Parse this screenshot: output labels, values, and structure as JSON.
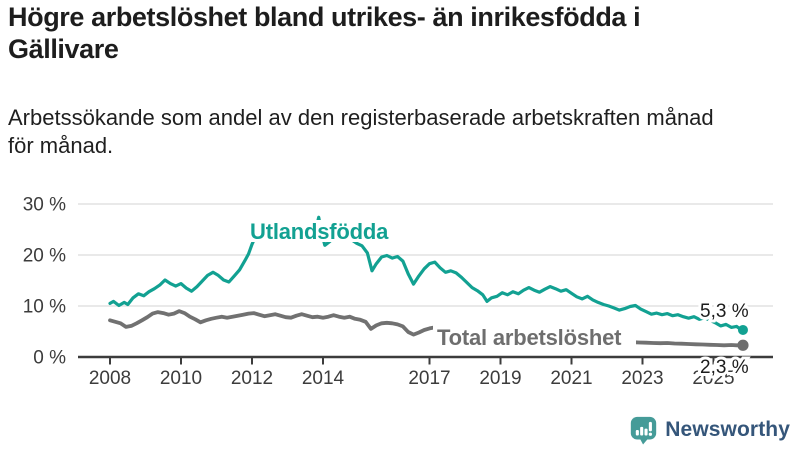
{
  "header": {
    "title": "Högre arbetslöshet bland utrikes- än inrikesfödda i Gällivare",
    "subtitle": "Arbetssökande som andel av den registerbaserade arbetskraften månad för månad."
  },
  "chart_data": {
    "type": "line",
    "xlabel": "",
    "ylabel": "",
    "x_range": [
      2008,
      2025.83
    ],
    "ylim": [
      0,
      30
    ],
    "grid": "horizontal",
    "y_ticks": [
      0,
      10,
      20,
      30
    ],
    "y_tick_suffix": " %",
    "x_tick_labels": [
      "2008",
      "2010",
      "2012",
      "2014",
      "2017",
      "2019",
      "2021",
      "2023",
      "2025"
    ],
    "x_tick_values": [
      2008,
      2010,
      2012,
      2014,
      2017,
      2019,
      2021,
      2023,
      2025
    ],
    "colors": {
      "utlandsfodda": "#12a192",
      "total": "#717171",
      "axis": "#3c3c3c",
      "gridline": "#dcdcdc",
      "end_label": "#1c1c1c"
    },
    "series": [
      {
        "name": "Utlandsfödda",
        "color": "#12a192",
        "end_label": "5,3 %",
        "end_value": 5.3,
        "points": [
          [
            2008.0,
            10.5
          ],
          [
            2008.1,
            10.9
          ],
          [
            2008.25,
            10.1
          ],
          [
            2008.4,
            10.7
          ],
          [
            2008.5,
            10.3
          ],
          [
            2008.65,
            11.6
          ],
          [
            2008.8,
            12.4
          ],
          [
            2008.95,
            12.0
          ],
          [
            2009.1,
            12.8
          ],
          [
            2009.25,
            13.4
          ],
          [
            2009.4,
            14.1
          ],
          [
            2009.55,
            15.1
          ],
          [
            2009.7,
            14.4
          ],
          [
            2009.85,
            13.9
          ],
          [
            2010.0,
            14.4
          ],
          [
            2010.15,
            13.5
          ],
          [
            2010.3,
            12.9
          ],
          [
            2010.45,
            13.8
          ],
          [
            2010.6,
            14.9
          ],
          [
            2010.75,
            16.0
          ],
          [
            2010.9,
            16.6
          ],
          [
            2011.05,
            16.0
          ],
          [
            2011.2,
            15.1
          ],
          [
            2011.35,
            14.7
          ],
          [
            2011.5,
            15.9
          ],
          [
            2011.65,
            17.1
          ],
          [
            2011.8,
            18.9
          ],
          [
            2011.9,
            20.2
          ],
          [
            2012.0,
            22.1
          ],
          [
            2012.1,
            23.6
          ],
          [
            2012.2,
            24.4
          ],
          [
            2012.3,
            23.4
          ],
          [
            2012.4,
            24.1
          ],
          [
            2012.5,
            24.6
          ],
          [
            2012.6,
            23.8
          ],
          [
            2012.75,
            23.4
          ],
          [
            2012.9,
            23.8
          ],
          [
            2013.05,
            24.1
          ],
          [
            2013.2,
            23.5
          ],
          [
            2013.35,
            23.9
          ],
          [
            2013.5,
            24.3
          ],
          [
            2013.65,
            23.7
          ],
          [
            2013.8,
            25.0
          ],
          [
            2013.88,
            27.4
          ],
          [
            2013.97,
            24.2
          ],
          [
            2014.05,
            21.9
          ],
          [
            2014.2,
            22.7
          ],
          [
            2014.35,
            23.8
          ],
          [
            2014.5,
            24.2
          ],
          [
            2014.65,
            23.6
          ],
          [
            2014.8,
            23.0
          ],
          [
            2014.95,
            22.3
          ],
          [
            2015.1,
            21.8
          ],
          [
            2015.25,
            20.4
          ],
          [
            2015.38,
            16.9
          ],
          [
            2015.5,
            18.3
          ],
          [
            2015.65,
            19.6
          ],
          [
            2015.8,
            19.9
          ],
          [
            2015.95,
            19.4
          ],
          [
            2016.1,
            19.7
          ],
          [
            2016.25,
            18.8
          ],
          [
            2016.4,
            16.3
          ],
          [
            2016.55,
            14.3
          ],
          [
            2016.7,
            15.9
          ],
          [
            2016.85,
            17.3
          ],
          [
            2017.0,
            18.3
          ],
          [
            2017.15,
            18.6
          ],
          [
            2017.3,
            17.5
          ],
          [
            2017.45,
            16.6
          ],
          [
            2017.6,
            16.9
          ],
          [
            2017.75,
            16.5
          ],
          [
            2017.9,
            15.6
          ],
          [
            2018.05,
            14.6
          ],
          [
            2018.2,
            13.6
          ],
          [
            2018.35,
            13.0
          ],
          [
            2018.5,
            12.2
          ],
          [
            2018.62,
            10.9
          ],
          [
            2018.75,
            11.6
          ],
          [
            2018.9,
            11.9
          ],
          [
            2019.05,
            12.6
          ],
          [
            2019.2,
            12.2
          ],
          [
            2019.35,
            12.8
          ],
          [
            2019.5,
            12.4
          ],
          [
            2019.65,
            13.1
          ],
          [
            2019.8,
            13.6
          ],
          [
            2019.95,
            13.1
          ],
          [
            2020.1,
            12.7
          ],
          [
            2020.25,
            13.3
          ],
          [
            2020.4,
            13.8
          ],
          [
            2020.55,
            13.4
          ],
          [
            2020.7,
            12.9
          ],
          [
            2020.85,
            13.2
          ],
          [
            2021.0,
            12.5
          ],
          [
            2021.15,
            11.8
          ],
          [
            2021.3,
            11.4
          ],
          [
            2021.45,
            11.9
          ],
          [
            2021.6,
            11.2
          ],
          [
            2021.75,
            10.7
          ],
          [
            2021.9,
            10.3
          ],
          [
            2022.05,
            10.0
          ],
          [
            2022.2,
            9.6
          ],
          [
            2022.35,
            9.2
          ],
          [
            2022.5,
            9.5
          ],
          [
            2022.65,
            9.9
          ],
          [
            2022.8,
            10.1
          ],
          [
            2022.95,
            9.4
          ],
          [
            2023.1,
            8.9
          ],
          [
            2023.25,
            8.4
          ],
          [
            2023.4,
            8.6
          ],
          [
            2023.55,
            8.3
          ],
          [
            2023.7,
            8.5
          ],
          [
            2023.85,
            8.1
          ],
          [
            2024.0,
            8.3
          ],
          [
            2024.15,
            7.9
          ],
          [
            2024.3,
            7.6
          ],
          [
            2024.45,
            7.9
          ],
          [
            2024.6,
            7.4
          ],
          [
            2024.75,
            7.7
          ],
          [
            2024.9,
            7.2
          ],
          [
            2025.05,
            6.7
          ],
          [
            2025.2,
            6.1
          ],
          [
            2025.35,
            6.4
          ],
          [
            2025.5,
            5.8
          ],
          [
            2025.65,
            6.0
          ],
          [
            2025.75,
            5.5
          ],
          [
            2025.83,
            5.3
          ]
        ]
      },
      {
        "name": "Total arbetslöshet",
        "color": "#717171",
        "end_label": "2,3 %",
        "end_value": 2.3,
        "points": [
          [
            2008.0,
            7.2
          ],
          [
            2008.15,
            6.9
          ],
          [
            2008.3,
            6.6
          ],
          [
            2008.45,
            5.9
          ],
          [
            2008.6,
            6.1
          ],
          [
            2008.75,
            6.6
          ],
          [
            2008.9,
            7.2
          ],
          [
            2009.05,
            7.8
          ],
          [
            2009.2,
            8.5
          ],
          [
            2009.35,
            8.8
          ],
          [
            2009.5,
            8.6
          ],
          [
            2009.65,
            8.3
          ],
          [
            2009.8,
            8.5
          ],
          [
            2009.95,
            9.0
          ],
          [
            2010.1,
            8.6
          ],
          [
            2010.25,
            7.9
          ],
          [
            2010.4,
            7.4
          ],
          [
            2010.55,
            6.8
          ],
          [
            2010.7,
            7.2
          ],
          [
            2010.85,
            7.5
          ],
          [
            2011.0,
            7.7
          ],
          [
            2011.15,
            7.9
          ],
          [
            2011.3,
            7.7
          ],
          [
            2011.45,
            7.9
          ],
          [
            2011.6,
            8.1
          ],
          [
            2011.75,
            8.3
          ],
          [
            2011.9,
            8.5
          ],
          [
            2012.05,
            8.6
          ],
          [
            2012.2,
            8.3
          ],
          [
            2012.35,
            8.0
          ],
          [
            2012.5,
            8.2
          ],
          [
            2012.65,
            8.4
          ],
          [
            2012.8,
            8.1
          ],
          [
            2012.95,
            7.8
          ],
          [
            2013.1,
            7.7
          ],
          [
            2013.25,
            8.1
          ],
          [
            2013.4,
            8.4
          ],
          [
            2013.55,
            8.1
          ],
          [
            2013.7,
            7.8
          ],
          [
            2013.85,
            7.9
          ],
          [
            2014.0,
            7.7
          ],
          [
            2014.15,
            7.9
          ],
          [
            2014.3,
            8.2
          ],
          [
            2014.45,
            7.9
          ],
          [
            2014.6,
            7.7
          ],
          [
            2014.75,
            7.9
          ],
          [
            2014.9,
            7.5
          ],
          [
            2015.05,
            7.3
          ],
          [
            2015.2,
            6.9
          ],
          [
            2015.35,
            5.5
          ],
          [
            2015.5,
            6.2
          ],
          [
            2015.65,
            6.6
          ],
          [
            2015.8,
            6.7
          ],
          [
            2015.95,
            6.6
          ],
          [
            2016.1,
            6.4
          ],
          [
            2016.25,
            6.0
          ],
          [
            2016.4,
            4.9
          ],
          [
            2016.55,
            4.4
          ],
          [
            2016.7,
            4.8
          ],
          [
            2016.85,
            5.3
          ],
          [
            2017.0,
            5.6
          ],
          [
            2017.15,
            5.8
          ],
          [
            2017.4,
            5.4
          ],
          [
            2017.7,
            5.0
          ],
          [
            2018.0,
            4.7
          ],
          [
            2018.3,
            4.4
          ],
          [
            2018.6,
            4.1
          ],
          [
            2018.9,
            4.2
          ],
          [
            2019.2,
            4.0
          ],
          [
            2019.5,
            3.8
          ],
          [
            2019.8,
            3.9
          ],
          [
            2020.1,
            4.3
          ],
          [
            2020.3,
            5.1
          ],
          [
            2020.6,
            4.9
          ],
          [
            2020.9,
            4.5
          ],
          [
            2021.2,
            4.1
          ],
          [
            2021.5,
            3.8
          ],
          [
            2021.8,
            3.5
          ],
          [
            2022.1,
            3.3
          ],
          [
            2022.4,
            3.1
          ],
          [
            2022.7,
            2.9
          ],
          [
            2022.9,
            2.85
          ],
          [
            2023.1,
            2.8
          ],
          [
            2023.3,
            2.75
          ],
          [
            2023.5,
            2.7
          ],
          [
            2023.7,
            2.75
          ],
          [
            2023.9,
            2.65
          ],
          [
            2024.1,
            2.6
          ],
          [
            2024.3,
            2.55
          ],
          [
            2024.5,
            2.5
          ],
          [
            2024.7,
            2.45
          ],
          [
            2024.9,
            2.4
          ],
          [
            2025.1,
            2.35
          ],
          [
            2025.3,
            2.3
          ],
          [
            2025.5,
            2.35
          ],
          [
            2025.65,
            2.3
          ],
          [
            2025.83,
            2.3
          ]
        ]
      }
    ]
  },
  "footer": {
    "brand": "Newsworthy",
    "logo_color": "#459b98",
    "brand_text_color": "#35567a"
  }
}
